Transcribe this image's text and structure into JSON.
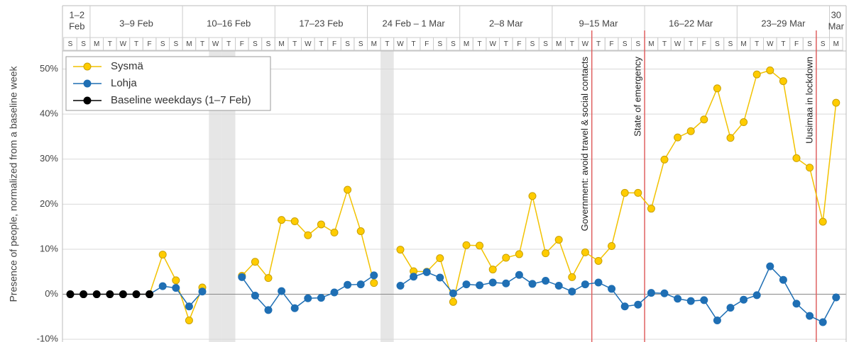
{
  "chart_data": {
    "type": "line",
    "ylabel": "Presence of people, normalized from a baseline week",
    "categories": [
      "S",
      "S",
      "M",
      "T",
      "W",
      "T",
      "F",
      "S",
      "S",
      "M",
      "T",
      "W",
      "T",
      "F",
      "S",
      "S",
      "M",
      "T",
      "W",
      "T",
      "F",
      "S",
      "S",
      "M",
      "T",
      "W",
      "T",
      "F",
      "S",
      "S",
      "M",
      "T",
      "W",
      "T",
      "F",
      "S",
      "S",
      "M",
      "T",
      "W",
      "T",
      "F",
      "S",
      "S",
      "M",
      "T",
      "W",
      "T",
      "F",
      "S",
      "S",
      "M",
      "T",
      "W",
      "T",
      "F",
      "S",
      "S",
      "M"
    ],
    "weeks": [
      {
        "label": [
          "1–2",
          "Feb"
        ],
        "start": 0,
        "days": 2
      },
      {
        "label": [
          "3–9 Feb"
        ],
        "start": 2,
        "days": 7
      },
      {
        "label": [
          "10–16 Feb"
        ],
        "start": 9,
        "days": 7
      },
      {
        "label": [
          "17–23 Feb"
        ],
        "start": 16,
        "days": 7
      },
      {
        "label": [
          "24 Feb – 1 Mar"
        ],
        "start": 23,
        "days": 7
      },
      {
        "label": [
          "2–8 Mar"
        ],
        "start": 30,
        "days": 7
      },
      {
        "label": [
          "9–15 Mar"
        ],
        "start": 37,
        "days": 7
      },
      {
        "label": [
          "16–22 Mar"
        ],
        "start": 44,
        "days": 7
      },
      {
        "label": [
          "23–29 Mar"
        ],
        "start": 51,
        "days": 7
      },
      {
        "label": [
          "30",
          "Mar"
        ],
        "start": 58,
        "days": 1
      }
    ],
    "series": [
      {
        "name": "Sysmä",
        "color": "#f2c200",
        "marker_color": "#ffcc00",
        "values": [
          null,
          null,
          null,
          null,
          null,
          null,
          0,
          8.8,
          3.1,
          -5.8,
          1.5,
          null,
          null,
          4.1,
          7.2,
          3.6,
          16.5,
          16.2,
          13.1,
          15.5,
          13.7,
          23.2,
          14.0,
          2.5,
          null,
          9.9,
          5.1,
          5.0,
          8.0,
          -1.7,
          10.9,
          10.8,
          5.5,
          8.1,
          8.9,
          21.8,
          9.1,
          12.1,
          3.8,
          9.3,
          7.4,
          10.7,
          22.5,
          22.5,
          19.0,
          29.9,
          34.8,
          36.2,
          38.8,
          45.7,
          34.7,
          38.2,
          48.8,
          49.7,
          47.3,
          30.2,
          28.1,
          16.1,
          42.5
        ]
      },
      {
        "name": "Lohja",
        "color": "#1f6fb4",
        "marker_color": "#1f6fb4",
        "values": [
          null,
          null,
          null,
          null,
          null,
          null,
          0,
          1.8,
          1.4,
          -2.7,
          0.6,
          null,
          null,
          3.8,
          -0.3,
          -3.5,
          0.7,
          -3.1,
          -0.9,
          -0.8,
          0.4,
          2.1,
          2.2,
          4.2,
          null,
          1.9,
          3.9,
          4.9,
          3.7,
          0.2,
          2.2,
          2.0,
          2.6,
          2.4,
          4.3,
          2.3,
          3.0,
          1.9,
          0.6,
          2.2,
          2.6,
          1.2,
          -2.7,
          -2.3,
          0.3,
          0.2,
          -1.0,
          -1.5,
          -1.3,
          -5.8,
          -3.0,
          -1.2,
          -0.2,
          6.2,
          3.2,
          -2.1,
          -4.8,
          -6.2,
          -0.7
        ]
      },
      {
        "name": "Baseline weekdays (1–7 Feb)",
        "color": "#000000",
        "marker_color": "#000000",
        "values": [
          0,
          0,
          0,
          0,
          0,
          0,
          0,
          null,
          null,
          null,
          null,
          null,
          null,
          null,
          null,
          null,
          null,
          null,
          null,
          null,
          null,
          null,
          null,
          null,
          null,
          null,
          null,
          null,
          null,
          null,
          null,
          null,
          null,
          null,
          null,
          null,
          null,
          null,
          null,
          null,
          null,
          null,
          null,
          null,
          null,
          null,
          null,
          null,
          null,
          null,
          null,
          null,
          null,
          null,
          null,
          null,
          null,
          null,
          null
        ]
      }
    ],
    "annotations": [
      {
        "text": "Government: avoid travel & social contacts",
        "x": 39.5,
        "color": "#e06060"
      },
      {
        "text": "State of emergency",
        "x": 43.5,
        "color": "#e06060"
      },
      {
        "text": "Uusimaa in lockdown",
        "x": 56.5,
        "color": "#e06060"
      }
    ],
    "ylim": [
      -10.6,
      54
    ],
    "yticks": [
      {
        "value": -10,
        "label": "-10%"
      },
      {
        "value": 0,
        "label": "0%"
      },
      {
        "value": 10,
        "label": "10%"
      },
      {
        "value": 20,
        "label": "20%"
      },
      {
        "value": 30,
        "label": "30%"
      },
      {
        "value": 40,
        "label": "40%"
      },
      {
        "value": 50,
        "label": "50%"
      }
    ],
    "grid": true,
    "legend": "upper left"
  }
}
